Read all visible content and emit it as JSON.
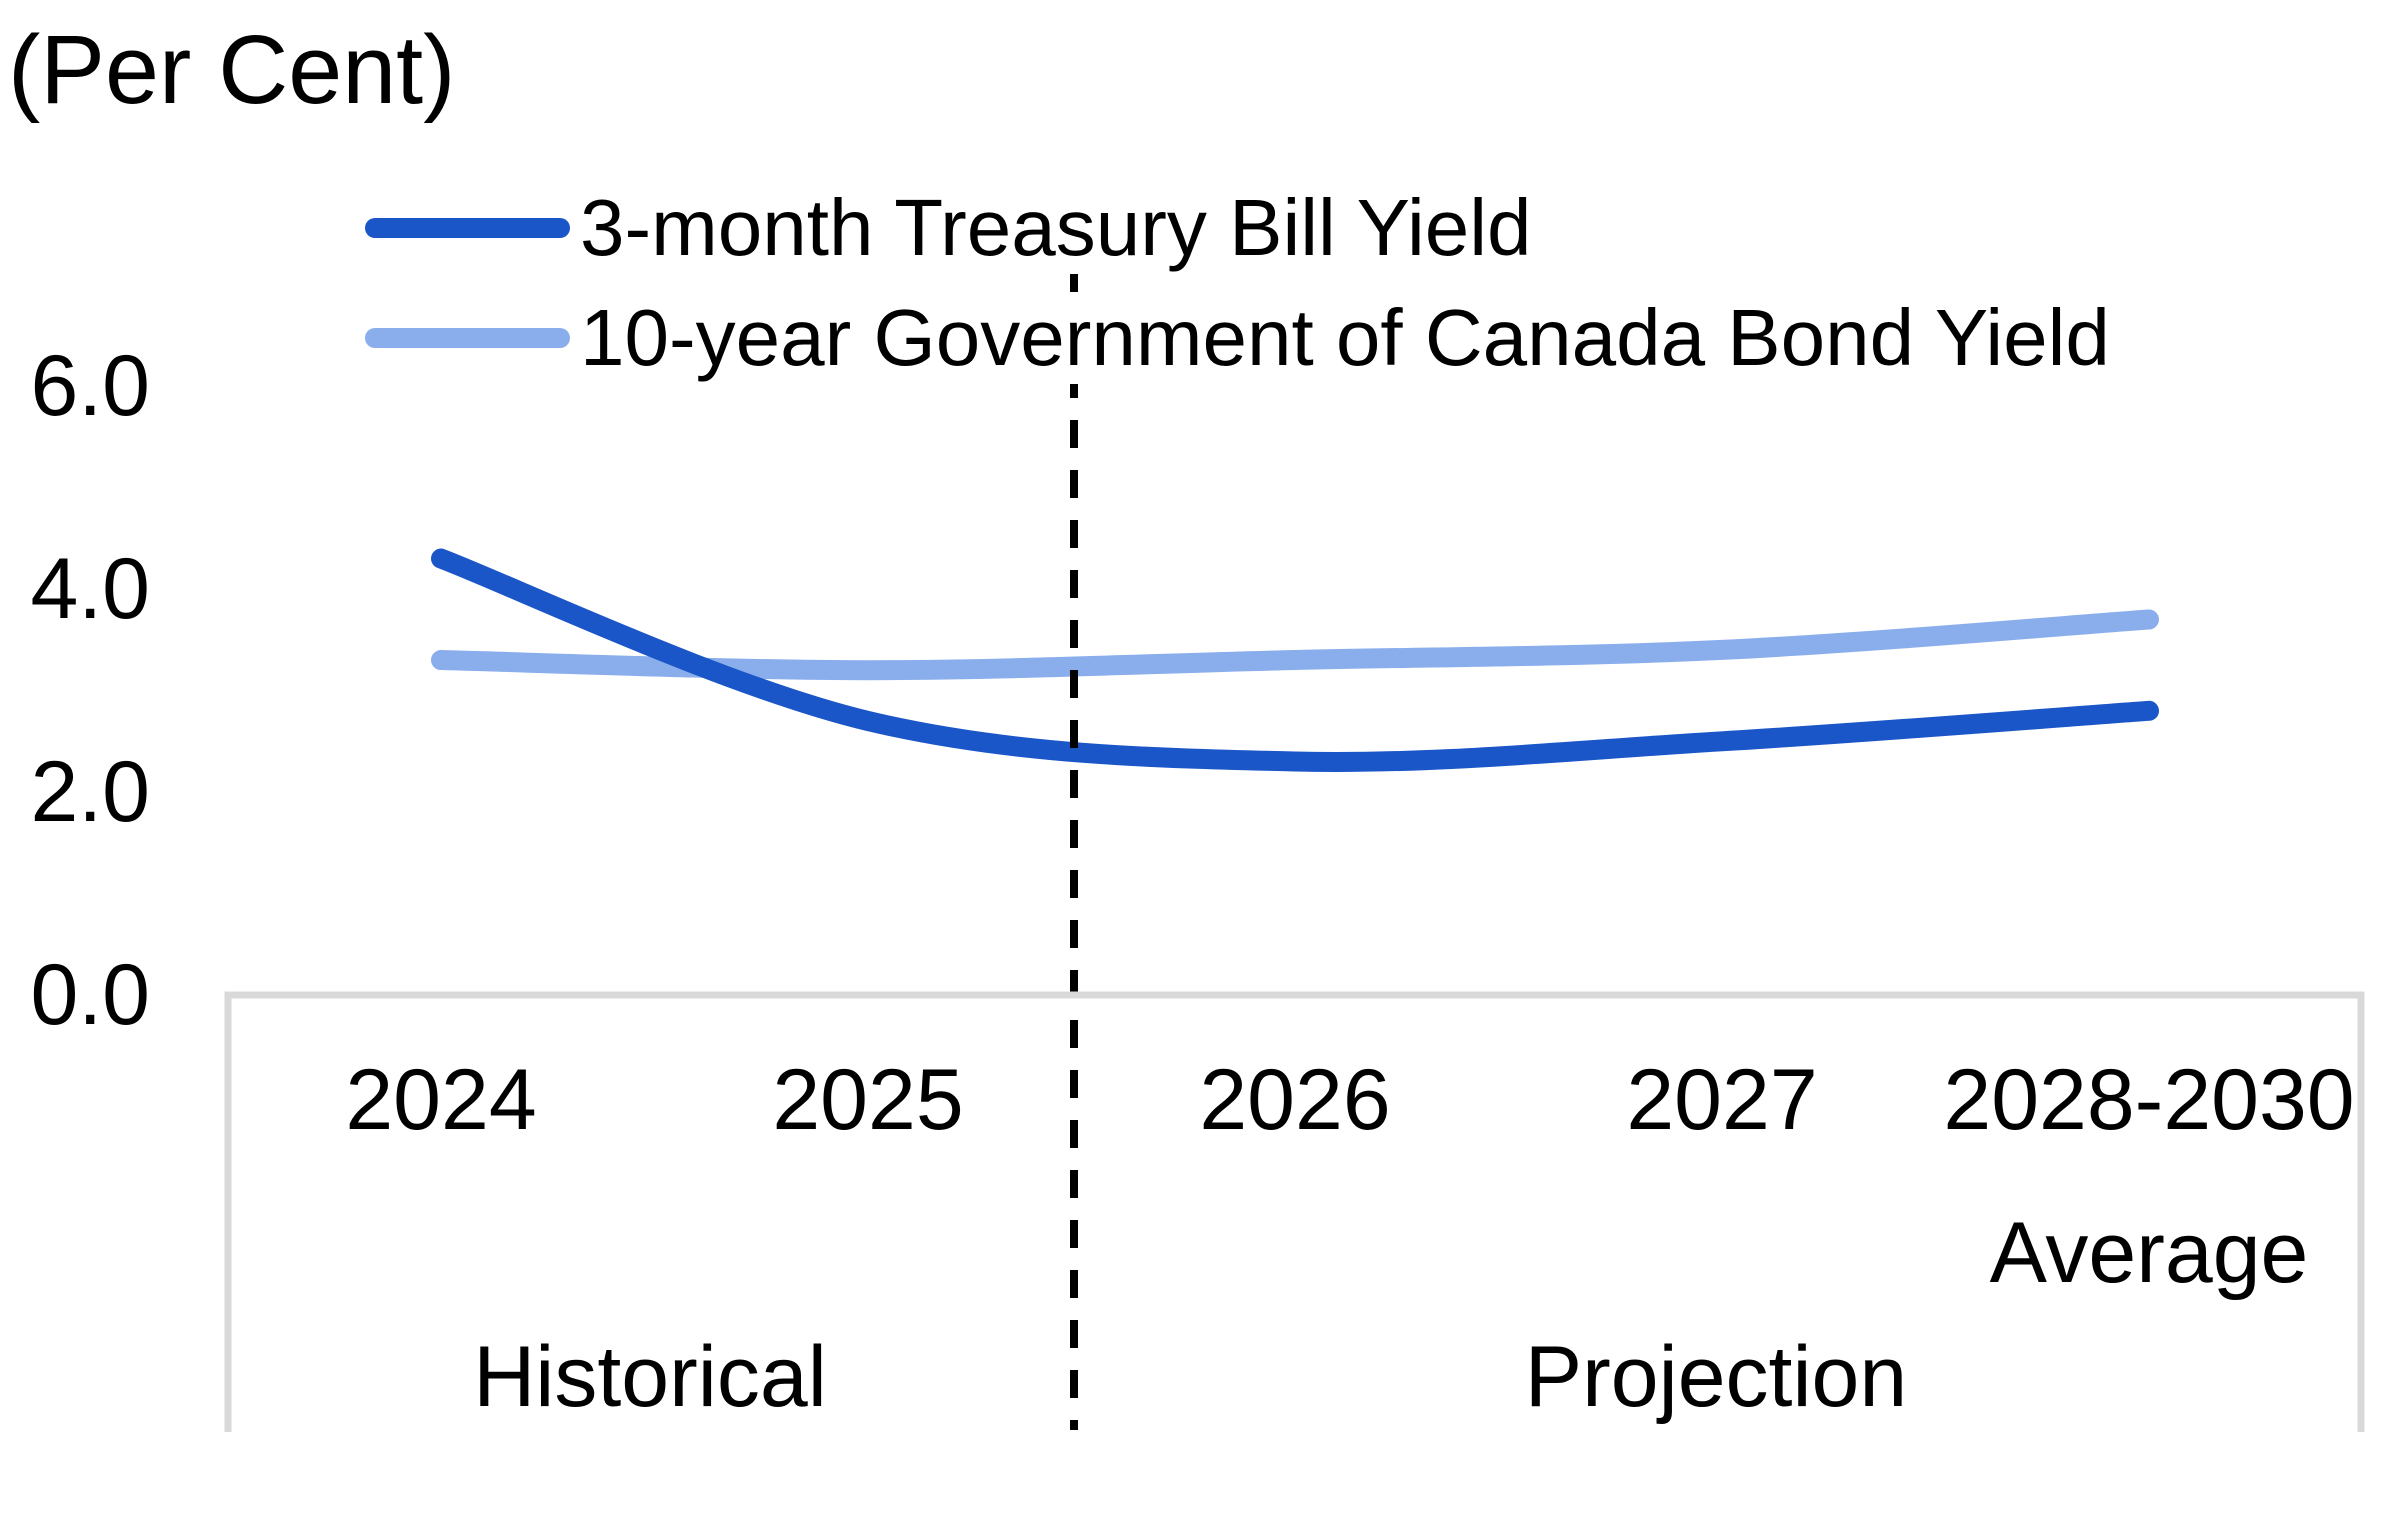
{
  "unit_label": "(Per Cent)",
  "chart_data": {
    "type": "line",
    "title": "(Per Cent)",
    "categories": [
      "2024",
      "2025",
      "2026",
      "2027",
      "2028-2030"
    ],
    "last_category_note": "Average",
    "series": [
      {
        "name": "3-month Treasury Bill Yield",
        "color": "#1B56C8",
        "values": [
          4.3,
          2.7,
          2.3,
          2.5,
          2.8
        ]
      },
      {
        "name": "10-year Government of Canada Bond Yield",
        "color": "#8AAEEC",
        "values": [
          3.3,
          3.2,
          3.3,
          3.4,
          3.7
        ]
      }
    ],
    "ylim": [
      0,
      6
    ],
    "yticks": [
      "0.0",
      "2.0",
      "4.0",
      "6.0"
    ],
    "grid": "off",
    "legend_position": "top",
    "regions": {
      "historical_label": "Historical",
      "projection_label": "Projection",
      "divider_between": [
        "2025",
        "2026"
      ],
      "divider_style": "dashed"
    }
  },
  "colors": {
    "series_dark_blue": "#1B56C8",
    "series_light_blue": "#8AAEEC",
    "axis_border": "#D9D9D9",
    "divider": "#000000",
    "text": "#000000",
    "background": "#FFFFFF"
  }
}
